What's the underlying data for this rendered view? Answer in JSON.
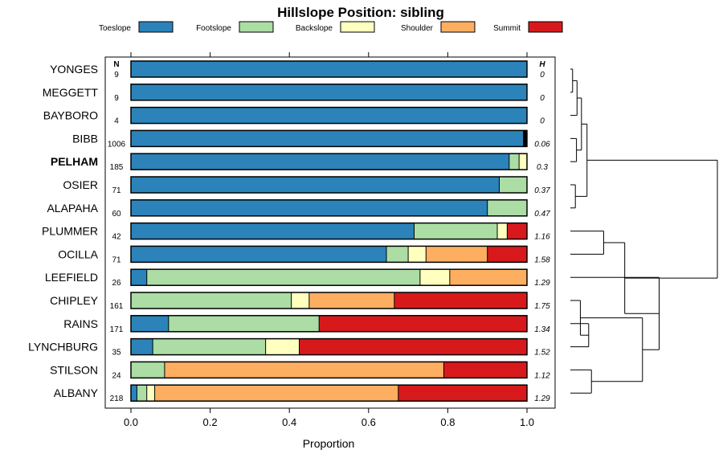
{
  "chart_data": {
    "type": "bar",
    "stacked": true,
    "orientation": "horizontal",
    "title": "Hillslope Position: sibling",
    "xlabel": "Proportion",
    "ylabel": "",
    "xlim": [
      0,
      1
    ],
    "xticks": [
      "0.0",
      "0.2",
      "0.4",
      "0.6",
      "0.8",
      "1.0"
    ],
    "n_header": "N",
    "h_header": "H",
    "legend": [
      {
        "name": "Toeslope",
        "color": "#2b83ba"
      },
      {
        "name": "Footslope",
        "color": "#abdda4"
      },
      {
        "name": "Backslope",
        "color": "#ffffbf"
      },
      {
        "name": "Shoulder",
        "color": "#fdae61"
      },
      {
        "name": "Summit",
        "color": "#d7191c"
      }
    ],
    "extra_color": "#000000",
    "rows": [
      {
        "label": "YONGES",
        "n": "9",
        "h": "0",
        "bold": false,
        "values": [
          1.0,
          0,
          0,
          0,
          0
        ]
      },
      {
        "label": "MEGGETT",
        "n": "9",
        "h": "0",
        "bold": false,
        "values": [
          1.0,
          0,
          0,
          0,
          0
        ]
      },
      {
        "label": "BAYBORO",
        "n": "4",
        "h": "0",
        "bold": false,
        "values": [
          1.0,
          0,
          0,
          0,
          0
        ]
      },
      {
        "label": "BIBB",
        "n": "1006",
        "h": "0.06",
        "bold": false,
        "values": [
          0.99,
          0,
          0,
          0,
          0
        ],
        "extra": 0.01
      },
      {
        "label": "PELHAM",
        "n": "185",
        "h": "0.3",
        "bold": true,
        "values": [
          0.955,
          0.025,
          0.02,
          0,
          0
        ]
      },
      {
        "label": "OSIER",
        "n": "71",
        "h": "0.37",
        "bold": false,
        "values": [
          0.93,
          0.07,
          0,
          0,
          0
        ]
      },
      {
        "label": "ALAPAHA",
        "n": "60",
        "h": "0.47",
        "bold": false,
        "values": [
          0.9,
          0.1,
          0,
          0,
          0
        ]
      },
      {
        "label": "PLUMMER",
        "n": "42",
        "h": "1.16",
        "bold": false,
        "values": [
          0.715,
          0.21,
          0.025,
          0,
          0.05
        ]
      },
      {
        "label": "OCILLA",
        "n": "71",
        "h": "1.58",
        "bold": false,
        "values": [
          0.645,
          0.055,
          0.045,
          0.155,
          0.1
        ]
      },
      {
        "label": "LEEFIELD",
        "n": "26",
        "h": "1.29",
        "bold": false,
        "values": [
          0.04,
          0.69,
          0.075,
          0.195,
          0
        ]
      },
      {
        "label": "CHIPLEY",
        "n": "161",
        "h": "1.75",
        "bold": false,
        "values": [
          0,
          0.405,
          0.045,
          0.215,
          0.335
        ]
      },
      {
        "label": "RAINS",
        "n": "171",
        "h": "1.34",
        "bold": false,
        "values": [
          0.095,
          0.38,
          0,
          0,
          0.525
        ]
      },
      {
        "label": "LYNCHBURG",
        "n": "35",
        "h": "1.52",
        "bold": false,
        "values": [
          0.055,
          0.285,
          0.085,
          0,
          0.575
        ]
      },
      {
        "label": "STILSON",
        "n": "24",
        "h": "1.12",
        "bold": false,
        "values": [
          0,
          0.085,
          0,
          0.705,
          0.21
        ]
      },
      {
        "label": "ALBANY",
        "n": "218",
        "h": "1.29",
        "bold": false,
        "values": [
          0.015,
          0.025,
          0.02,
          0.615,
          0.325
        ]
      }
    ],
    "dendrogram": {
      "merges": [
        [
          -1,
          -2
        ],
        [
          -3,
          1
        ],
        [
          -4,
          -5
        ],
        [
          2,
          3
        ],
        [
          -6,
          -7
        ],
        [
          4,
          5
        ],
        [
          -8,
          -9
        ],
        [
          -12,
          -13
        ],
        [
          -11,
          8
        ],
        [
          -14,
          -15
        ],
        [
          9,
          10
        ],
        [
          -10,
          11
        ],
        [
          7,
          12
        ],
        [
          6,
          13
        ]
      ],
      "heights": [
        0.04,
        0.12,
        0.11,
        0.2,
        0.09,
        0.3,
        0.6,
        0.33,
        0.18,
        0.38,
        1.3,
        1.6,
        0.98,
        2.65
      ]
    }
  }
}
